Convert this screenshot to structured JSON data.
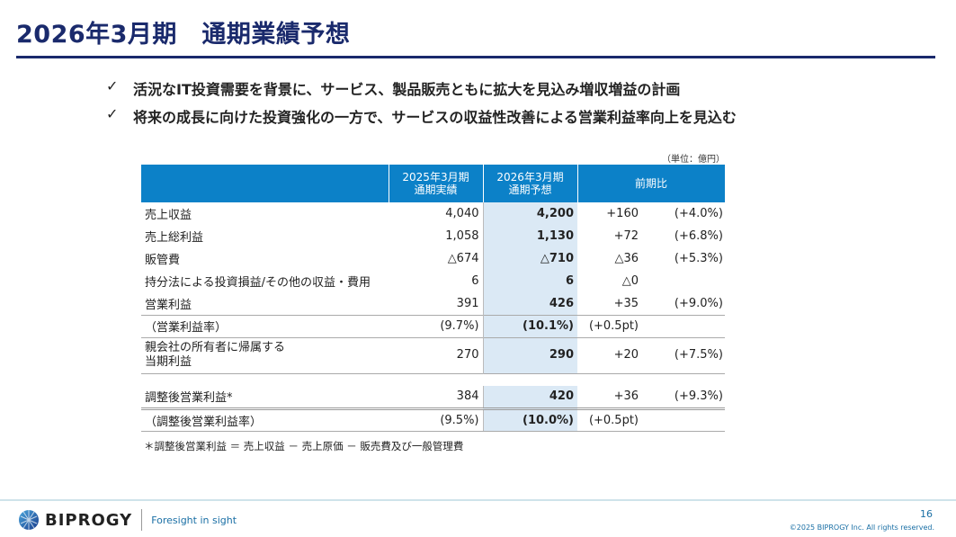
{
  "title": "2026年3月期　通期業績予想",
  "bullets": [
    "活況なIT投資需要を背景に、サービス、製品販売ともに拡大を見込み増収増益の計画",
    "将来の成長に向けた投資強化の一方で、サービスの収益性改善による営業利益率向上を見込む"
  ],
  "check": "✓",
  "unit": "（単位：億円）",
  "headers": {
    "c1a": "2025年3月期",
    "c1b": "通期実績",
    "c2a": "2026年3月期",
    "c2b": "通期予想",
    "diff": "前期比"
  },
  "rows": [
    {
      "label": "売上収益",
      "v1": "4,040",
      "v2": "4,200",
      "d": "+160",
      "p": "(+4.0%)"
    },
    {
      "label": "売上総利益",
      "v1": "1,058",
      "v2": "1,130",
      "d": "+72",
      "p": "(+6.8%)"
    },
    {
      "label": "販管費",
      "v1": "△674",
      "v2": "△710",
      "d": "△36",
      "p": "(+5.3%)"
    },
    {
      "label": "持分法による投資損益/その他の収益・費用",
      "v1": "6",
      "v2": "6",
      "d": "△0",
      "p": ""
    },
    {
      "label": "営業利益",
      "v1": "391",
      "v2": "426",
      "d": "+35",
      "p": "(+9.0%)"
    },
    {
      "label": "（営業利益率）",
      "v1": "(9.7%)",
      "v2": "(10.1%)",
      "d": "(+0.5pt)",
      "p": ""
    },
    {
      "label1": "親会社の所有者に帰属する",
      "label2": "当期利益",
      "v1": "270",
      "v2": "290",
      "d": "+20",
      "p": "(+7.5%)"
    },
    {
      "label": "調整後営業利益*",
      "v1": "384",
      "v2": "420",
      "d": "+36",
      "p": "(+9.3%)"
    },
    {
      "label": "（調整後営業利益率）",
      "v1": "(9.5%)",
      "v2": "(10.0%)",
      "d": "(+0.5pt)",
      "p": ""
    }
  ],
  "note": "＊調整後営業利益 ＝ 売上収益 － 売上原価 － 販売費及び一般管理費",
  "footer": {
    "brand": "BIPROGY",
    "tagline": "Foresight in sight",
    "page": "16",
    "copyright": "©2025 BIPROGY Inc. All rights reserved."
  }
}
